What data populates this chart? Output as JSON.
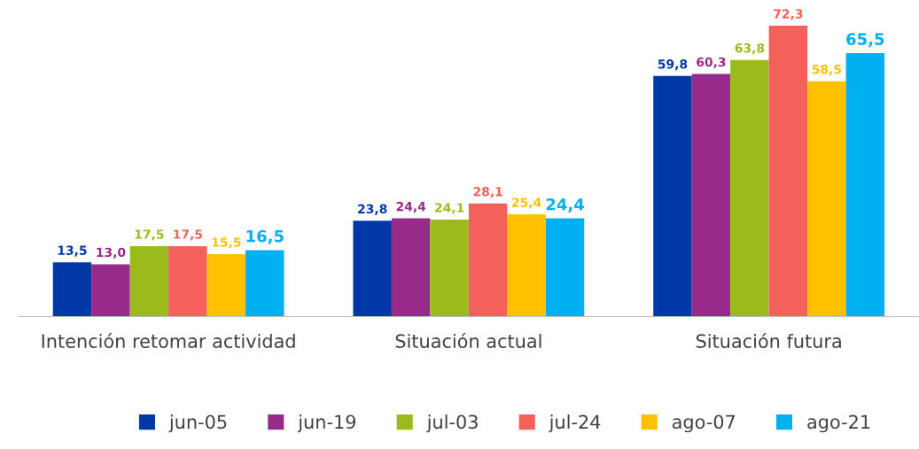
{
  "chart_data": {
    "type": "bar",
    "categories": [
      "Intención retomar actividad",
      "Situación actual",
      "Situación futura"
    ],
    "series": [
      {
        "name": "jun-05",
        "color": "#0038a8",
        "values": [
          13.5,
          23.8,
          59.8
        ],
        "value_labels": [
          "13,5",
          "23,8",
          "59,8"
        ]
      },
      {
        "name": "jun-19",
        "color": "#982a8c",
        "values": [
          13.0,
          24.4,
          60.3
        ],
        "value_labels": [
          "13,0",
          "24,4",
          "60,3"
        ]
      },
      {
        "name": "jul-03",
        "color": "#9bbb1c",
        "values": [
          17.5,
          24.1,
          63.8
        ],
        "value_labels": [
          "17,5",
          "24,1",
          "63,8"
        ]
      },
      {
        "name": "jul-24",
        "color": "#f4605a",
        "values": [
          17.5,
          28.1,
          72.3
        ],
        "value_labels": [
          "17,5",
          "28,1",
          "72,3"
        ]
      },
      {
        "name": "ago-07",
        "color": "#ffc000",
        "values": [
          15.5,
          25.4,
          58.5
        ],
        "value_labels": [
          "15,5",
          "25,4",
          "58,5"
        ]
      },
      {
        "name": "ago-21",
        "color": "#00b0f0",
        "values": [
          16.5,
          24.4,
          65.5
        ],
        "value_labels": [
          "16,5",
          "24,4",
          "65,5"
        ]
      }
    ],
    "legend": "bottom",
    "grid": false
  }
}
